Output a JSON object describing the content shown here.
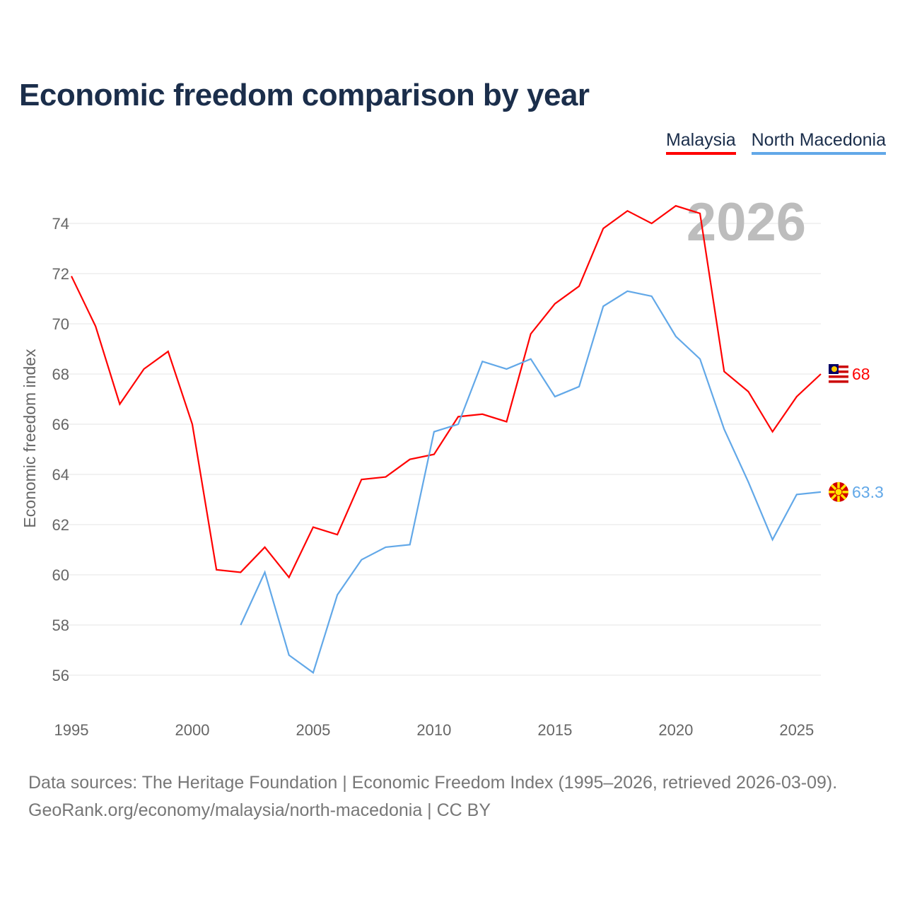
{
  "title": "Economic freedom comparison by year",
  "footer": {
    "line1": "Data sources: The Heritage Foundation | Economic Freedom Index (1995–2026, retrieved 2026-03-09).",
    "line2": "GeoRank.org/economy/malaysia/north-macedonia | CC BY"
  },
  "chart_data": {
    "type": "line",
    "title": "Economic freedom comparison by year",
    "xlabel": "",
    "ylabel": "Economic freedom index",
    "year_label": "2026",
    "xlim": [
      1995,
      2026
    ],
    "ylim": [
      56,
      74
    ],
    "xticks": [
      1995,
      2000,
      2005,
      2010,
      2015,
      2020,
      2025
    ],
    "yticks": [
      56,
      58,
      60,
      62,
      64,
      66,
      68,
      70,
      72,
      74
    ],
    "grid": true,
    "legend": "top-right",
    "series": [
      {
        "name": "Malaysia",
        "color": "#ff0000",
        "end_label": "68",
        "start": 1995,
        "values": [
          71.9,
          69.9,
          66.8,
          68.2,
          68.9,
          66.0,
          60.2,
          60.1,
          61.1,
          59.9,
          61.9,
          61.6,
          63.8,
          63.9,
          64.6,
          64.8,
          66.3,
          66.4,
          66.1,
          69.6,
          70.8,
          71.5,
          73.8,
          74.5,
          74.0,
          74.7,
          74.4,
          68.1,
          67.3,
          65.7,
          67.1,
          68.0
        ]
      },
      {
        "name": "North Macedonia",
        "color": "#62a8e8",
        "end_label": "63.3",
        "start": 2002,
        "values": [
          58.0,
          60.1,
          56.8,
          56.1,
          59.2,
          60.6,
          61.1,
          61.2,
          65.7,
          66.0,
          68.5,
          68.2,
          68.6,
          67.1,
          67.5,
          70.7,
          71.3,
          71.1,
          69.5,
          68.6,
          65.8,
          63.7,
          61.4,
          63.2,
          63.3
        ]
      }
    ]
  }
}
